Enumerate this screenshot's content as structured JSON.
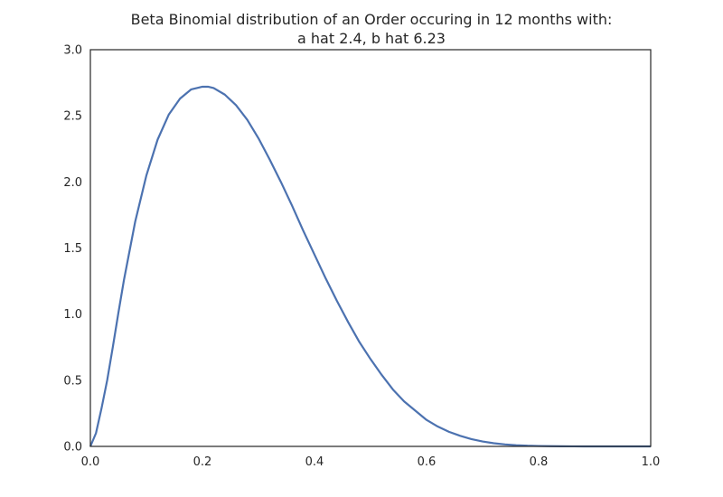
{
  "chart_data": {
    "type": "line",
    "title": "Beta Binomial distribution of an Order occuring in 12 months with:",
    "subtitle": "a hat 2.4, b hat 6.23",
    "xlabel": "",
    "ylabel": "",
    "xlim": [
      0.0,
      1.0
    ],
    "ylim": [
      0.0,
      3.0
    ],
    "x_ticks": [
      "0.0",
      "0.2",
      "0.4",
      "0.6",
      "0.8",
      "1.0"
    ],
    "y_ticks": [
      "0.0",
      "0.5",
      "1.0",
      "1.5",
      "2.0",
      "2.5",
      "3.0"
    ],
    "grid": false,
    "legend": "none",
    "line_color": "#4c72b0",
    "series": [
      {
        "x": [
          0.0,
          0.01,
          0.02,
          0.03,
          0.04,
          0.05,
          0.06,
          0.08,
          0.1,
          0.12,
          0.14,
          0.16,
          0.18,
          0.2,
          0.21,
          0.22,
          0.24,
          0.26,
          0.28,
          0.3,
          0.32,
          0.34,
          0.36,
          0.38,
          0.4,
          0.42,
          0.44,
          0.46,
          0.48,
          0.5,
          0.52,
          0.54,
          0.56,
          0.58,
          0.6,
          0.62,
          0.64,
          0.66,
          0.68,
          0.7,
          0.72,
          0.74,
          0.76,
          0.78,
          0.8,
          0.82,
          0.84,
          0.86,
          0.88,
          0.9,
          0.92,
          0.94,
          0.96,
          0.98,
          1.0
        ],
        "values": [
          0.0,
          0.1,
          0.29,
          0.5,
          0.75,
          1.01,
          1.26,
          1.7,
          2.05,
          2.32,
          2.51,
          2.63,
          2.7,
          2.72,
          2.72,
          2.71,
          2.66,
          2.58,
          2.47,
          2.33,
          2.17,
          2.0,
          1.82,
          1.63,
          1.45,
          1.27,
          1.1,
          0.94,
          0.79,
          0.66,
          0.54,
          0.43,
          0.34,
          0.27,
          0.2,
          0.15,
          0.11,
          0.08,
          0.055,
          0.037,
          0.024,
          0.015,
          0.009,
          0.005,
          0.003,
          0.0015,
          0.0008,
          0.0004,
          0.0002,
          0.0001,
          0.0,
          0.0,
          0.0,
          0.0,
          0.0
        ]
      }
    ]
  }
}
